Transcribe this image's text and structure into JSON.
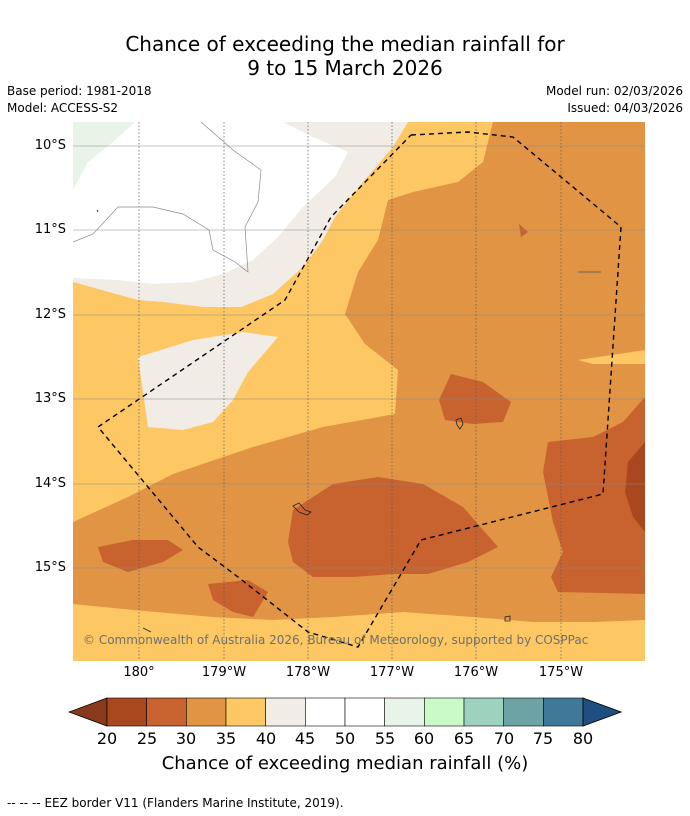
{
  "title": {
    "line1": "Chance of exceeding the median rainfall for",
    "line2": "9 to 15 March 2026"
  },
  "meta": {
    "base_period": "Base period: 1981-2018",
    "model": "Model: ACCESS-S2",
    "model_run": "Model run: 02/03/2026",
    "issued": "Issued: 04/03/2026"
  },
  "map": {
    "lat_labels": [
      "10°S",
      "11°S",
      "12°S",
      "13°S",
      "14°S",
      "15°S"
    ],
    "lon_labels": [
      "180°",
      "179°W",
      "178°W",
      "177°W",
      "176°W",
      "175°W"
    ],
    "credit": "© Commonwealth of Australia 2026, Bureau of Meteorology, supported by COSPPac"
  },
  "colorbar": {
    "ticks": [
      "20",
      "25",
      "30",
      "35",
      "40",
      "45",
      "50",
      "55",
      "60",
      "65",
      "70",
      "75",
      "80"
    ],
    "colors": [
      "#a9481e",
      "#c8622f",
      "#e09444",
      "#fdc863",
      "#f1ece6",
      "#ffffff",
      "#ffffff",
      "#e9f4e8",
      "#c9fac8",
      "#9dd3be",
      "#6ea3a6",
      "#3f7898"
    ],
    "under_color": "#8a3a1c",
    "over_color": "#1e4f80",
    "label": "Chance of exceeding median rainfall (%)"
  },
  "footer": {
    "legend_symbol": "-- -- --",
    "legend_text": "EEZ border V11 (Flanders Marine Institute, 2019)."
  }
}
